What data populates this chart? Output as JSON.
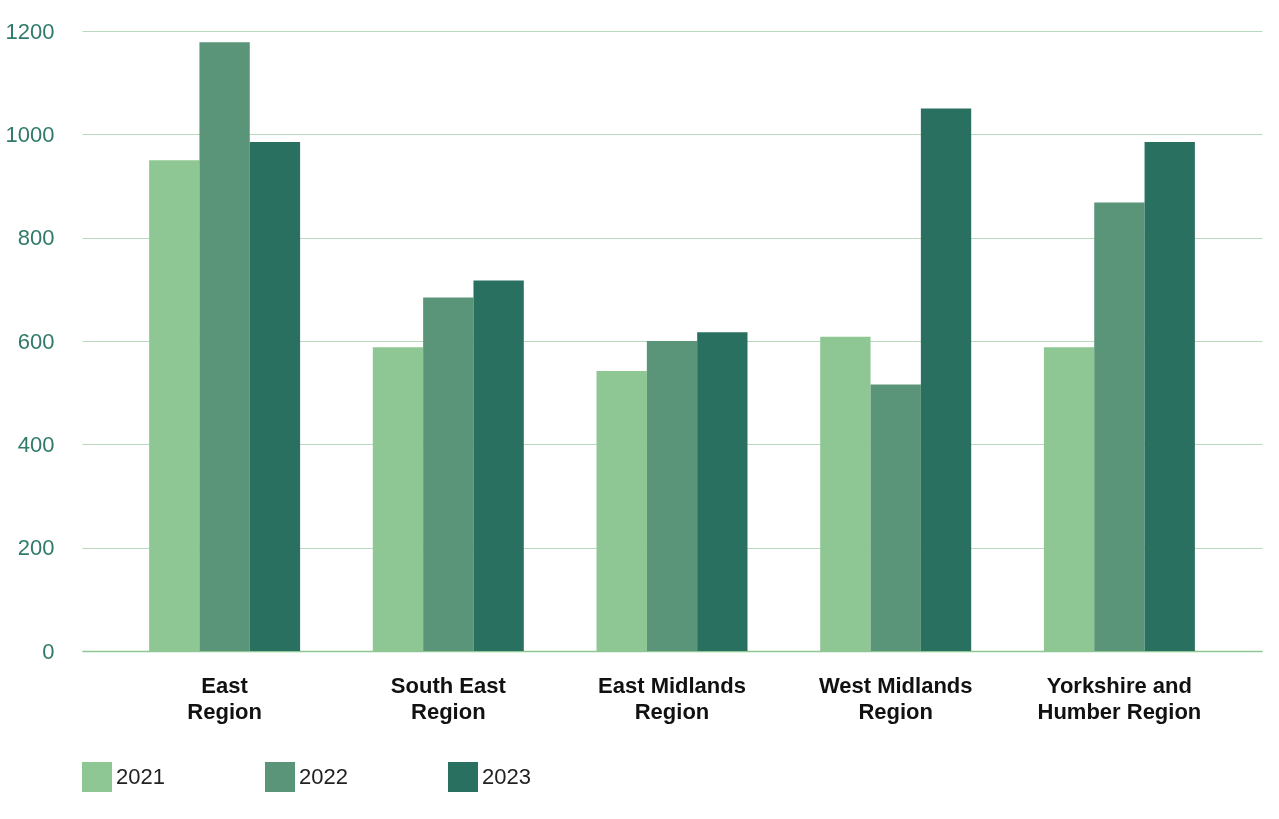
{
  "chart_data": {
    "type": "bar",
    "categories": [
      "East Region",
      "South East Region",
      "East Midlands Region",
      "West Midlands Region",
      "Yorkshire and Humber Region"
    ],
    "series": [
      {
        "name": "2021",
        "color": "#8fc794",
        "values": [
          950,
          588,
          542,
          608,
          588
        ]
      },
      {
        "name": "2022",
        "color": "#5b9579",
        "values": [
          1178,
          684,
          600,
          516,
          868
        ]
      },
      {
        "name": "2023",
        "color": "#2a7060",
        "values": [
          985,
          717,
          617,
          1050,
          985
        ]
      }
    ],
    "ylim": [
      0,
      1200
    ],
    "yticks": [
      0,
      200,
      400,
      600,
      800,
      1000,
      1200
    ],
    "grid": "y",
    "legend": "bottom"
  }
}
